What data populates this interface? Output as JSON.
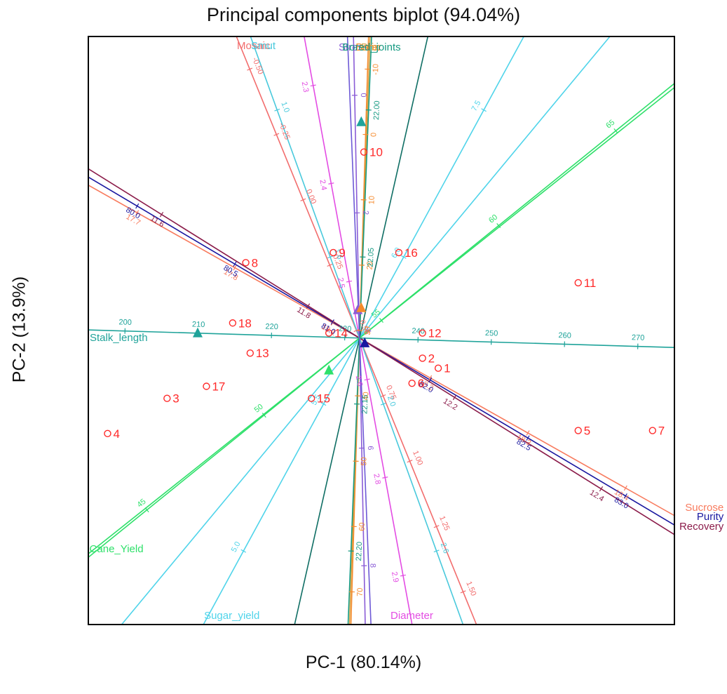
{
  "chart_data": {
    "type": "scatter",
    "subtype": "biplot",
    "title": "Principal components biplot (94.04%)",
    "xlabel": "PC-1  (80.14%)",
    "ylabel": "PC-2  (13.9%)",
    "points": [
      {
        "label": "1",
        "x": 0.9,
        "y": -0.3
      },
      {
        "label": "2",
        "x": 0.72,
        "y": -0.2
      },
      {
        "label": "3",
        "x": -2.2,
        "y": -0.6
      },
      {
        "label": "4",
        "x": -2.88,
        "y": -0.95
      },
      {
        "label": "5",
        "x": 2.5,
        "y": -0.92
      },
      {
        "label": "6",
        "x": 0.6,
        "y": -0.45
      },
      {
        "label": "7",
        "x": 3.35,
        "y": -0.92
      },
      {
        "label": "8",
        "x": -1.3,
        "y": 0.75
      },
      {
        "label": "9",
        "x": -0.3,
        "y": 0.85
      },
      {
        "label": "10",
        "x": 0.05,
        "y": 1.85
      },
      {
        "label": "11",
        "x": 2.5,
        "y": 0.55
      },
      {
        "label": "12",
        "x": 0.72,
        "y": 0.05
      },
      {
        "label": "13",
        "x": -1.25,
        "y": -0.15
      },
      {
        "label": "14",
        "x": -0.35,
        "y": 0.05
      },
      {
        "label": "15",
        "x": -0.55,
        "y": -0.6
      },
      {
        "label": "16",
        "x": 0.45,
        "y": 0.85
      },
      {
        "label": "17",
        "x": -1.75,
        "y": -0.48
      },
      {
        "label": "18",
        "x": -1.45,
        "y": 0.15
      }
    ],
    "variables": [
      {
        "name": "Sucrose",
        "color": "#f87b5e",
        "dir": [
          0.87,
          -0.49
        ]
      },
      {
        "name": "Purity",
        "color": "#1a18a0",
        "dir": [
          0.86,
          -0.51
        ]
      },
      {
        "name": "Recovery",
        "color": "#8b1c4a",
        "dir": [
          0.85,
          -0.53
        ]
      },
      {
        "name": "Stalk_length",
        "color": "#1fa39a",
        "dir": [
          -1.0,
          0.03
        ]
      },
      {
        "name": "Cane_Yield",
        "color": "#2ee06a",
        "dir": [
          -0.78,
          -0.63
        ]
      },
      {
        "name": "Sugar_yield",
        "color": "#4fd4ea",
        "dir": [
          -0.48,
          -0.88
        ]
      },
      {
        "name": "Diameter",
        "color": "#e34ce3",
        "dir": [
          0.18,
          -0.98
        ]
      },
      {
        "name": "Mosaic",
        "color": "#f26d6d",
        "dir": [
          -0.38,
          0.93
        ]
      },
      {
        "name": "Smut",
        "color": "#49c9dc",
        "dir": [
          -0.34,
          0.94
        ]
      },
      {
        "name": "Stress",
        "color": "#8a5cd6",
        "dir": [
          -0.02,
          1.0
        ]
      },
      {
        "name": "Borer",
        "color": "#f58a2c",
        "dir": [
          0.03,
          1.0
        ]
      },
      {
        "name": "Brix",
        "color": "#d8a040",
        "dir": [
          0.035,
          1.0
        ]
      },
      {
        "name": "Bored_joints",
        "color": "#169a82",
        "dir": [
          0.04,
          1.0
        ]
      }
    ],
    "extra_lines": [
      {
        "color": "#4fd4ea",
        "dir": [
          0.64,
          0.77
        ]
      },
      {
        "color": "#2ee06a",
        "dir": [
          0.78,
          0.62
        ]
      },
      {
        "color": "#0f6e64",
        "dir": [
          0.22,
          0.97
        ]
      },
      {
        "color": "#6e5ad6",
        "dir": [
          0.04,
          -1.0
        ]
      }
    ],
    "tick_labels": [
      {
        "line": "Sucrose",
        "values": [
          "17.7",
          "17.8",
          "18.1",
          "18.2",
          "18.3",
          "18.4"
        ]
      },
      {
        "line": "Purity",
        "values": [
          "80.0",
          "80.5",
          "81.0",
          "82.0",
          "82.5",
          "83.0"
        ]
      },
      {
        "line": "Recovery",
        "values": [
          "11.6",
          "11.8",
          "12.2",
          "12.4"
        ]
      },
      {
        "line": "Stalk_length",
        "values": [
          "270",
          "260",
          "250",
          "240",
          "230",
          "220",
          "210",
          "200"
        ]
      },
      {
        "line": "Cane_Yield",
        "values": [
          "65",
          "60",
          "55",
          "50",
          "45"
        ]
      },
      {
        "line": "Sugar_yield",
        "values": [
          "7.5",
          "6.0",
          "5.5",
          "5.0"
        ]
      },
      {
        "line": "Diameter",
        "values": [
          "2.3",
          "2.4",
          "2.5",
          "2.6",
          "2.8",
          "2.9"
        ]
      },
      {
        "line": "Mosaic",
        "values": [
          "1.50",
          "1.25",
          "1.00",
          "0.75",
          "0.50",
          "0.25",
          "0.00",
          "-0.25",
          "-0.50"
        ]
      },
      {
        "line": "Smut",
        "values": [
          "2.6",
          "2.0",
          "1.6",
          "1.0"
        ]
      },
      {
        "line": "Stress",
        "values": [
          "8",
          "6",
          "4",
          "2",
          "0"
        ]
      },
      {
        "line": "Borer",
        "values": [
          "70",
          "60",
          "50",
          "40",
          "30",
          "20",
          "10",
          "0",
          "-10"
        ]
      },
      {
        "line": "Bored_joints",
        "values": [
          "22.20",
          "22.15",
          "22.05",
          "22.00"
        ]
      }
    ],
    "markers": [
      {
        "color": "#1fa39a",
        "at": [
          -1.85,
          0.05
        ]
      },
      {
        "color": "#2ee06a",
        "at": [
          -0.35,
          -0.32
        ]
      },
      {
        "color": "#1fa39a",
        "at": [
          0.02,
          2.15
        ]
      },
      {
        "color": "#8a5cd6",
        "at": [
          -0.02,
          0.28
        ]
      },
      {
        "color": "#f58a2c",
        "at": [
          0.02,
          0.3
        ]
      },
      {
        "color": "#1a18a0",
        "at": [
          0.06,
          -0.05
        ]
      }
    ],
    "xlim": [
      -3.1,
      3.6
    ],
    "ylim": [
      -2.85,
      3.0
    ],
    "grid": false,
    "legend": "none"
  }
}
